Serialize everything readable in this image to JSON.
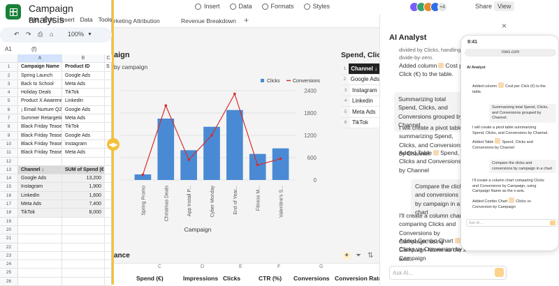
{
  "app": {
    "menu": [
      "Insert",
      "Data",
      "Formats",
      "Styles"
    ],
    "avatar_more": "+4",
    "share": "Share",
    "view": "View",
    "tabs": [
      "rketing Attribution",
      "Revenue Breakdown",
      "+"
    ]
  },
  "chart": {
    "title": "aign",
    "subtitle": "by campaign"
  },
  "chart_data": {
    "type": "bar",
    "categories": [
      "Spring Promo",
      "Christmas Deals",
      "App Install P...",
      "Cyber Monday",
      "End of Year...",
      "Fitness M...",
      "Valentine's S..."
    ],
    "series": [
      {
        "name": "Clicks",
        "type": "bar",
        "values": [
          150,
          1650,
          800,
          1430,
          1880,
          700,
          850
        ]
      },
      {
        "name": "Conversions",
        "type": "line",
        "values": [
          25,
          350,
          95,
          210,
          405,
          70,
          100
        ]
      }
    ],
    "left_axis_ticks": [],
    "right_axis_ticks": [
      "2400",
      "1800",
      "1200",
      "600",
      "0"
    ],
    "right_ylim": [
      0,
      2400
    ],
    "xlabel": "Campaign",
    "legend_position": "top-right",
    "colors": {
      "clicks": "#4a8ad4",
      "conversions": "#d62b2b"
    }
  },
  "pivot": {
    "title": "Spend, Clic",
    "rows": [
      {
        "n": "1",
        "v": "Channel ↓"
      },
      {
        "n": "2",
        "v": "Google Ads"
      },
      {
        "n": "3",
        "v": "Instagram"
      },
      {
        "n": "4",
        "v": "Linkedin"
      },
      {
        "n": "5",
        "v": "Meta Ads"
      },
      {
        "n": "6",
        "v": "TikTok"
      }
    ]
  },
  "bottom": {
    "section_title": "ance",
    "letters": [
      "C",
      "D",
      "E",
      "F",
      "G"
    ],
    "headers": [
      "Spend (€)",
      "Impressions",
      "Clicks",
      "CTR (%)",
      "Conversions",
      "Conversion Rate ("
    ]
  },
  "ai": {
    "title": "AI Analyst",
    "close": "×",
    "msg1": "divided by Clicks, handling divide-by-zero.",
    "msg1b_pre": "Added column",
    "msg1b_post": "Cost per Click (€) to the table.",
    "user1": "Summarizing total Spend, Clicks, and Conversions grouped by Channel.",
    "msg2": "I will create a pivot table summarizing Spend, Clicks, and Conversions by Channel.",
    "msg2b_pre": "Added Table",
    "msg2b_post": "Spend, Clicks and Conversions by Channel",
    "user2": "Compare the clicks and conversions by campaign in a chart",
    "msg3": "I'll create a column chart comparing Clicks and Conversions by Campaign, using Campaign Name as the x-axis.",
    "msg3b_pre": "Added Combo Chart",
    "msg3b_post": "Clicks vs Conversion by Campaign",
    "placeholder": "Ask AI..."
  },
  "phone": {
    "time": "9:41",
    "url": "rows.com",
    "head": "AI Analyst",
    "placeholder": "Ask AI..."
  },
  "sheet": {
    "title": "Campaign analysis",
    "menu": [
      "File",
      "Edit",
      "Insert",
      "Data",
      "Tools"
    ],
    "zoom": "100%",
    "namebox": "A1",
    "fx": "(f)",
    "col_headers": [
      "A",
      "B",
      "C"
    ],
    "rows": [
      {
        "n": "1",
        "a": "Campaign Name",
        "b": "Product ID",
        "c": "S",
        "kind": "hdr"
      },
      {
        "n": "2",
        "a": "Spring Launch",
        "b": "Google Ads",
        "c": ""
      },
      {
        "n": "3",
        "a": "Back to School",
        "b": "Meta Ads",
        "c": ""
      },
      {
        "n": "4",
        "a": "Holiday Deals",
        "b": "TikTok",
        "c": ""
      },
      {
        "n": "5",
        "a": "Product X Awareness",
        "b": "Linkedin",
        "c": ""
      },
      {
        "n": "6",
        "a": "¡ Email Nurture Q2",
        "b": "Google Ads",
        "c": ""
      },
      {
        "n": "7",
        "a": "Summer Retargeting",
        "b": "Meta Ads",
        "c": ""
      },
      {
        "n": "8",
        "a": "Black Friday Tease",
        "b": "TikTok",
        "c": ""
      },
      {
        "n": "9",
        "a": "Black Friday Tease",
        "b": "Google Ads",
        "c": ""
      },
      {
        "n": "10",
        "a": "Black Friday Tease",
        "b": "Instagram",
        "c": ""
      },
      {
        "n": "11",
        "a": "Black Friday Tease",
        "b": "Meta Ads",
        "c": ""
      },
      {
        "n": "12",
        "a": "",
        "b": "",
        "c": ""
      },
      {
        "n": "13",
        "a": "Channel ↓",
        "b": "SUM of Spend (€)",
        "c": "",
        "kind": "ph"
      },
      {
        "n": "14",
        "a": "Google Ads",
        "b": "13,200",
        "c": "",
        "kind": "pv"
      },
      {
        "n": "15",
        "a": "Instagram",
        "b": "1,900",
        "c": "",
        "kind": "pv"
      },
      {
        "n": "16",
        "a": "LinkedIn",
        "b": "1,600",
        "c": "",
        "kind": "pv"
      },
      {
        "n": "17",
        "a": "Meta Ads",
        "b": "7,400",
        "c": "",
        "kind": "pv"
      },
      {
        "n": "18",
        "a": "TikTok",
        "b": "8,000",
        "c": "",
        "kind": "pv"
      },
      {
        "n": "19",
        "a": "",
        "b": "",
        "c": ""
      },
      {
        "n": "20",
        "a": "",
        "b": "",
        "c": ""
      },
      {
        "n": "21",
        "a": "",
        "b": "",
        "c": ""
      },
      {
        "n": "22",
        "a": "",
        "b": "",
        "c": ""
      },
      {
        "n": "23",
        "a": "",
        "b": "",
        "c": ""
      },
      {
        "n": "24",
        "a": "",
        "b": "",
        "c": ""
      },
      {
        "n": "25",
        "a": "",
        "b": "",
        "c": ""
      },
      {
        "n": "26",
        "a": "",
        "b": "",
        "c": ""
      }
    ]
  }
}
